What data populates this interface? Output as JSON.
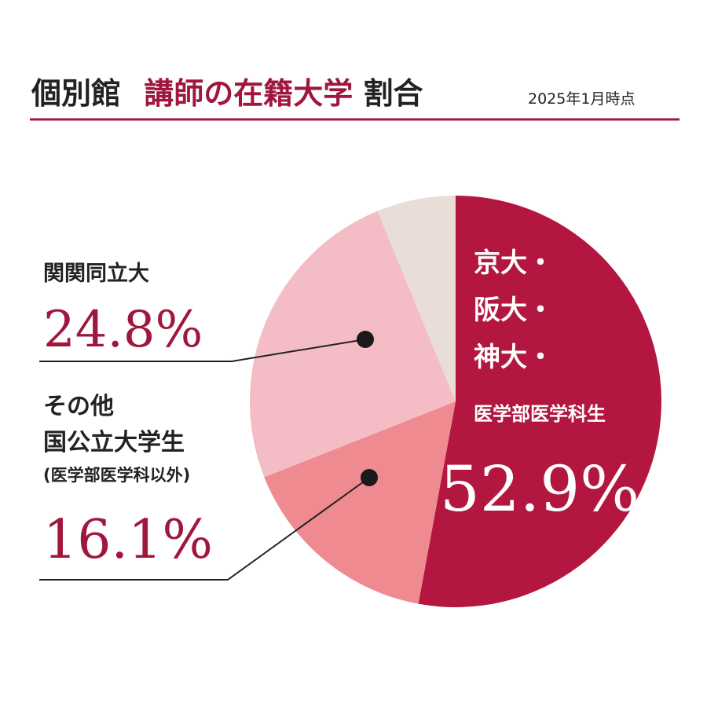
{
  "chart_data": {
    "type": "pie",
    "title": [
      "個別館",
      "講師の在籍大学",
      "割合"
    ],
    "subtitle": "2025年1月時点",
    "categories": [
      [
        "京大・",
        "阪大・",
        "神大・",
        "医学部医学科生"
      ],
      [
        "その他",
        "国公立大学生",
        "(医学部医学科以外)"
      ],
      [
        "関関同立大"
      ],
      null
    ],
    "values": [
      52.9,
      16.1,
      24.8,
      6.2
    ],
    "value_labels": [
      "52.9%",
      "16.1%",
      "24.8%",
      null
    ],
    "colors": [
      "#b3173f",
      "#ef8a90",
      "#f4bcc4",
      "#e9ded7"
    ]
  }
}
